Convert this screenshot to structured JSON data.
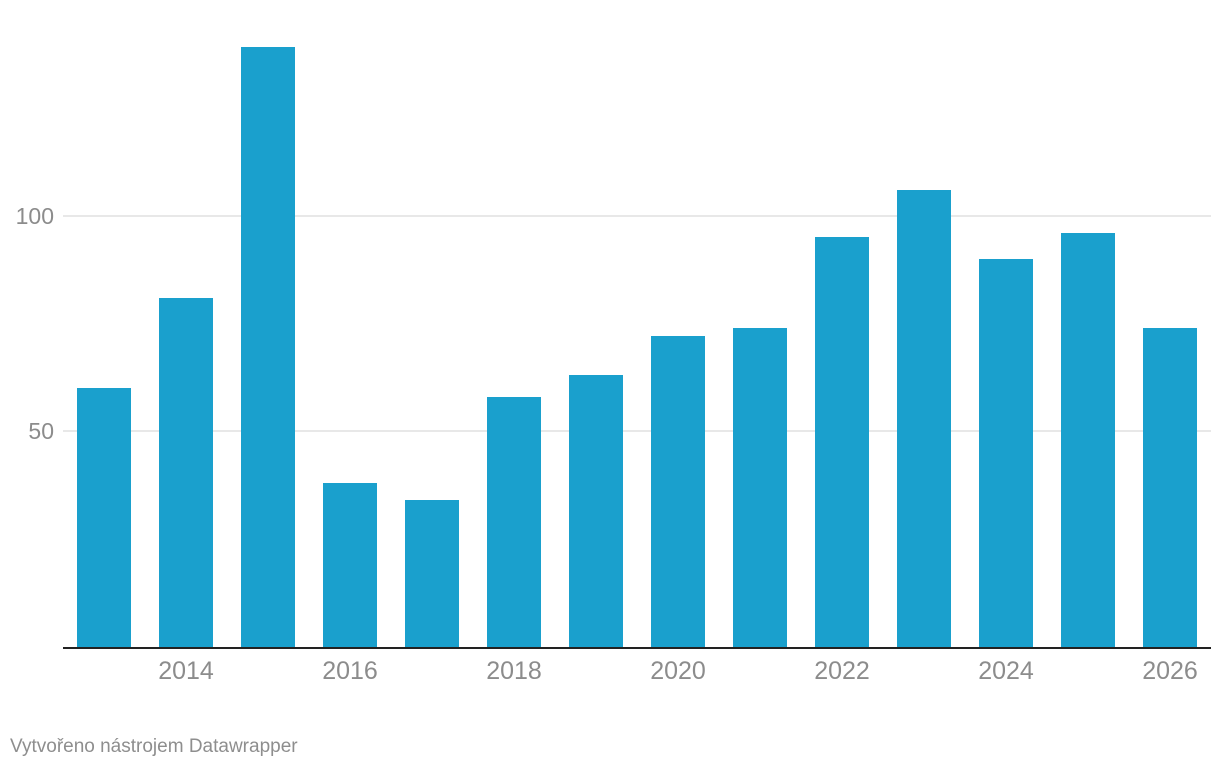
{
  "chart_data": {
    "type": "bar",
    "categories": [
      "2013",
      "2014",
      "2015",
      "2016",
      "2017",
      "2018",
      "2019",
      "2020",
      "2021",
      "2022",
      "2023",
      "2024",
      "2025",
      "2026"
    ],
    "values": [
      60,
      81,
      139,
      38,
      34,
      58,
      63,
      72,
      74,
      95,
      106,
      90,
      96,
      74
    ],
    "title": "",
    "xlabel": "",
    "ylabel": "",
    "ylim": [
      0,
      150
    ],
    "y_ticks": [
      50,
      100
    ],
    "x_tick_labels": [
      "2014",
      "2016",
      "2018",
      "2020",
      "2022",
      "2024",
      "2026"
    ],
    "grid": "horizontal-only",
    "legend": "none",
    "bar_color": "#1AA0CD"
  },
  "colors": {
    "bar": "#1AA0CD",
    "gridline": "#E8E8E8",
    "axis_line": "#222222",
    "tick_label": "#8C8C8C",
    "footer_text": "#8E8E8E",
    "background": "#FFFFFF"
  },
  "footer": {
    "credit": "Vytvořeno nástrojem Datawrapper"
  }
}
